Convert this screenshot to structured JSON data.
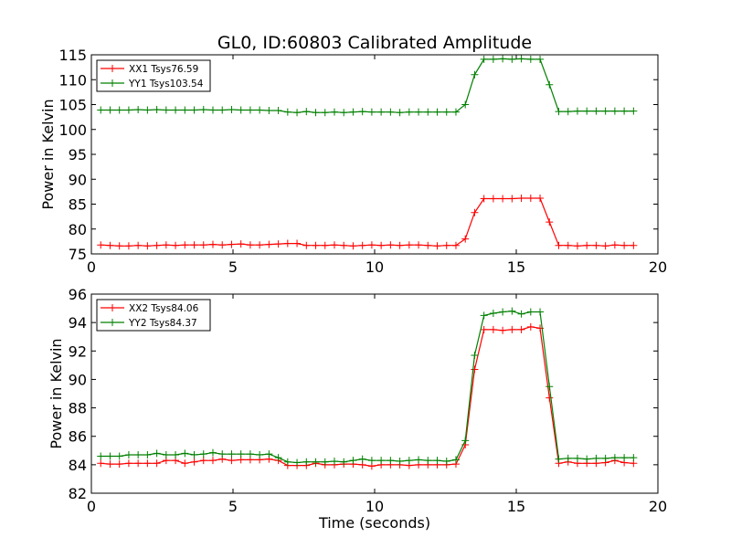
{
  "figure": {
    "title": "GL0, ID:60803 Calibrated Amplitude",
    "xlabel": "Time (seconds)"
  },
  "chart_data": [
    {
      "type": "line",
      "title": "GL0, ID:60803 Calibrated Amplitude",
      "xlabel": "",
      "ylabel": "Power in Kelvin",
      "xlim": [
        0,
        20
      ],
      "ylim": [
        75,
        115
      ],
      "xticks": [
        "0",
        "5",
        "10",
        "15",
        "20"
      ],
      "yticks": [
        "75",
        "80",
        "85",
        "90",
        "95",
        "100",
        "105",
        "110",
        "115"
      ],
      "legend_position": "top-left",
      "grid": false,
      "x": [
        0.33,
        0.66,
        0.99,
        1.32,
        1.65,
        1.98,
        2.31,
        2.64,
        2.97,
        3.3,
        3.63,
        3.96,
        4.29,
        4.62,
        4.95,
        5.28,
        5.61,
        5.94,
        6.27,
        6.6,
        6.93,
        7.26,
        7.59,
        7.92,
        8.25,
        8.58,
        8.91,
        9.24,
        9.57,
        9.9,
        10.23,
        10.56,
        10.89,
        11.22,
        11.55,
        11.88,
        12.21,
        12.54,
        12.87,
        13.2,
        13.53,
        13.86,
        14.19,
        14.52,
        14.85,
        15.18,
        15.51,
        15.84,
        16.17,
        16.5,
        16.83,
        17.16,
        17.49,
        17.82,
        18.15,
        18.48,
        18.81,
        19.14
      ],
      "series": [
        {
          "name": "XX1 Tsys76.59",
          "color": "#ff0000",
          "values": [
            76.8,
            76.7,
            76.6,
            76.6,
            76.7,
            76.6,
            76.7,
            76.8,
            76.7,
            76.8,
            76.8,
            76.8,
            76.9,
            76.8,
            76.9,
            77.0,
            76.8,
            76.8,
            76.9,
            77.0,
            77.1,
            77.1,
            76.7,
            76.7,
            76.7,
            76.8,
            76.7,
            76.6,
            76.7,
            76.8,
            76.7,
            76.8,
            76.7,
            76.8,
            76.8,
            76.7,
            76.6,
            76.7,
            76.7,
            78.0,
            83.3,
            86.1,
            86.1,
            86.1,
            86.1,
            86.2,
            86.2,
            86.2,
            81.4,
            76.7,
            76.7,
            76.6,
            76.7,
            76.7,
            76.6,
            76.8,
            76.7,
            76.7
          ]
        },
        {
          "name": "YY1 Tsys103.54",
          "color": "#008000",
          "values": [
            103.9,
            103.9,
            103.9,
            103.9,
            104.0,
            103.9,
            104.0,
            103.9,
            103.9,
            103.9,
            103.9,
            104.0,
            103.9,
            103.9,
            104.0,
            103.9,
            103.9,
            103.9,
            103.8,
            103.8,
            103.5,
            103.4,
            103.6,
            103.4,
            103.4,
            103.5,
            103.4,
            103.5,
            103.6,
            103.5,
            103.5,
            103.5,
            103.4,
            103.5,
            103.5,
            103.5,
            103.5,
            103.5,
            103.5,
            105.0,
            111.0,
            114.1,
            114.1,
            114.2,
            114.1,
            114.2,
            114.1,
            114.1,
            109.0,
            103.6,
            103.6,
            103.7,
            103.7,
            103.7,
            103.7,
            103.7,
            103.7,
            103.7
          ]
        }
      ]
    },
    {
      "type": "line",
      "title": "",
      "xlabel": "Time (seconds)",
      "ylabel": "Power in Kelvin",
      "xlim": [
        0,
        20
      ],
      "ylim": [
        82,
        96
      ],
      "xticks": [
        "0",
        "5",
        "10",
        "15",
        "20"
      ],
      "yticks": [
        "82",
        "84",
        "86",
        "88",
        "90",
        "92",
        "94",
        "96"
      ],
      "legend_position": "top-left",
      "grid": false,
      "x": [
        0.33,
        0.66,
        0.99,
        1.32,
        1.65,
        1.98,
        2.31,
        2.64,
        2.97,
        3.3,
        3.63,
        3.96,
        4.29,
        4.62,
        4.95,
        5.28,
        5.61,
        5.94,
        6.27,
        6.6,
        6.93,
        7.26,
        7.59,
        7.92,
        8.25,
        8.58,
        8.91,
        9.24,
        9.57,
        9.9,
        10.23,
        10.56,
        10.89,
        11.22,
        11.55,
        11.88,
        12.21,
        12.54,
        12.87,
        13.2,
        13.53,
        13.86,
        14.19,
        14.52,
        14.85,
        15.18,
        15.51,
        15.84,
        16.17,
        16.5,
        16.83,
        17.16,
        17.49,
        17.82,
        18.15,
        18.48,
        18.81,
        19.14
      ],
      "series": [
        {
          "name": "XX2 Tsys84.06",
          "color": "#ff0000",
          "values": [
            84.1,
            84.05,
            84.05,
            84.1,
            84.1,
            84.1,
            84.1,
            84.3,
            84.3,
            84.1,
            84.2,
            84.3,
            84.3,
            84.4,
            84.3,
            84.35,
            84.35,
            84.35,
            84.4,
            84.3,
            83.95,
            83.95,
            83.95,
            84.1,
            84.0,
            84.0,
            84.05,
            84.05,
            84.0,
            83.9,
            84.0,
            84.0,
            84.0,
            83.95,
            84.0,
            84.0,
            84.0,
            84.0,
            84.05,
            85.4,
            90.7,
            93.5,
            93.5,
            93.45,
            93.5,
            93.5,
            93.7,
            93.6,
            88.7,
            84.1,
            84.2,
            84.1,
            84.1,
            84.1,
            84.15,
            84.3,
            84.15,
            84.1
          ]
        },
        {
          "name": "YY2 Tsys84.37",
          "color": "#008000",
          "values": [
            84.6,
            84.6,
            84.6,
            84.7,
            84.7,
            84.7,
            84.8,
            84.7,
            84.7,
            84.8,
            84.7,
            84.75,
            84.85,
            84.75,
            84.75,
            84.75,
            84.75,
            84.7,
            84.75,
            84.5,
            84.2,
            84.15,
            84.2,
            84.2,
            84.2,
            84.25,
            84.2,
            84.3,
            84.4,
            84.3,
            84.3,
            84.3,
            84.25,
            84.3,
            84.35,
            84.3,
            84.3,
            84.25,
            84.35,
            85.7,
            91.7,
            94.5,
            94.65,
            94.75,
            94.8,
            94.6,
            94.75,
            94.75,
            89.5,
            84.4,
            84.45,
            84.45,
            84.4,
            84.45,
            84.45,
            84.5,
            84.5,
            84.5
          ]
        }
      ]
    }
  ]
}
